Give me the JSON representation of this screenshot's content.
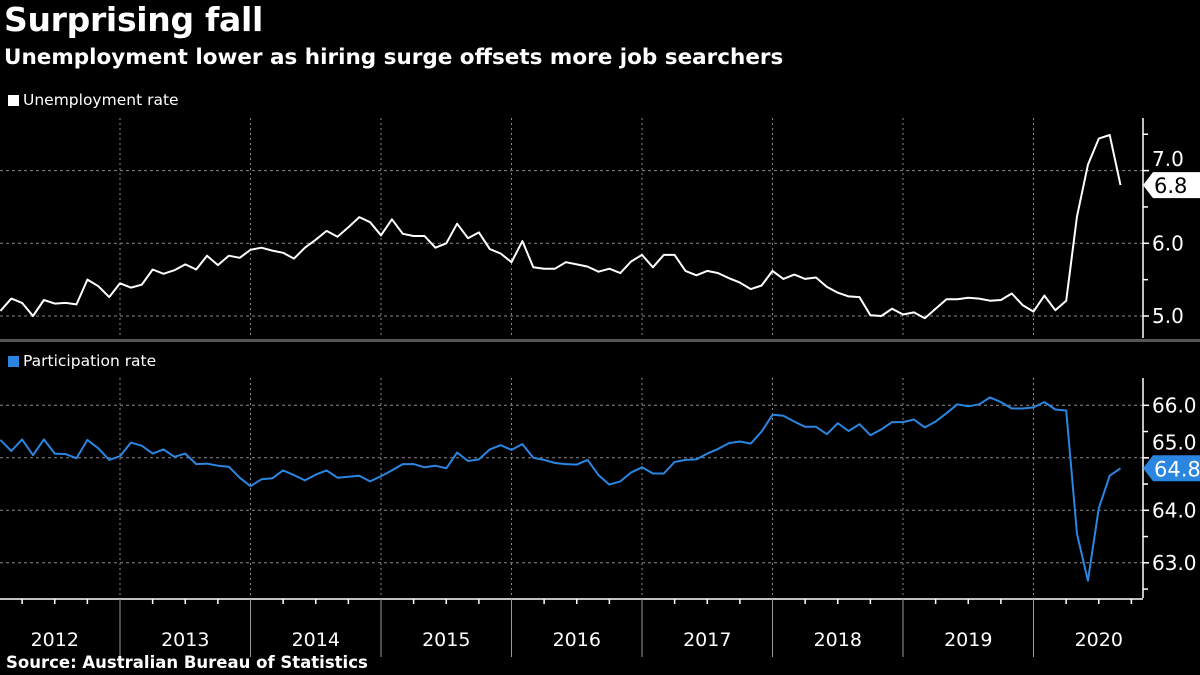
{
  "header": {
    "title": "Surprising fall",
    "subtitle": "Unemployment lower as hiring surge offsets more job searchers"
  },
  "footer": {
    "source": "Source: Australian Bureau of Statistics"
  },
  "colors": {
    "background": "#000000",
    "unemployment": "#ffffff",
    "participation": "#2a86e0",
    "separator": "#555555"
  },
  "chart_data": [
    {
      "type": "line",
      "title": "",
      "legend": {
        "entries": [
          "Unemployment rate"
        ],
        "placement": "top-left"
      },
      "xlabel": "",
      "ylabel": "",
      "x_tick_labels": [
        "2012",
        "2013",
        "2014",
        "2015",
        "2016",
        "2017",
        "2018",
        "2019",
        "2020"
      ],
      "y_tick_labels": [
        "5.0",
        "6.0",
        "7.0"
      ],
      "ylim": [
        4.7,
        7.7
      ],
      "y_axis_side": "right",
      "grid": true,
      "last_value_label": "6.8",
      "x": [
        "2012-01",
        "2012-02",
        "2012-03",
        "2012-04",
        "2012-05",
        "2012-06",
        "2012-07",
        "2012-08",
        "2012-09",
        "2012-10",
        "2012-11",
        "2012-12",
        "2013-01",
        "2013-02",
        "2013-03",
        "2013-04",
        "2013-05",
        "2013-06",
        "2013-07",
        "2013-08",
        "2013-09",
        "2013-10",
        "2013-11",
        "2013-12",
        "2014-01",
        "2014-02",
        "2014-03",
        "2014-04",
        "2014-05",
        "2014-06",
        "2014-07",
        "2014-08",
        "2014-09",
        "2014-10",
        "2014-11",
        "2014-12",
        "2015-01",
        "2015-02",
        "2015-03",
        "2015-04",
        "2015-05",
        "2015-06",
        "2015-07",
        "2015-08",
        "2015-09",
        "2015-10",
        "2015-11",
        "2015-12",
        "2016-01",
        "2016-02",
        "2016-03",
        "2016-04",
        "2016-05",
        "2016-06",
        "2016-07",
        "2016-08",
        "2016-09",
        "2016-10",
        "2016-11",
        "2016-12",
        "2017-01",
        "2017-02",
        "2017-03",
        "2017-04",
        "2017-05",
        "2017-06",
        "2017-07",
        "2017-08",
        "2017-09",
        "2017-10",
        "2017-11",
        "2017-12",
        "2018-01",
        "2018-02",
        "2018-03",
        "2018-04",
        "2018-05",
        "2018-06",
        "2018-07",
        "2018-08",
        "2018-09",
        "2018-10",
        "2018-11",
        "2018-12",
        "2019-01",
        "2019-02",
        "2019-03",
        "2019-04",
        "2019-05",
        "2019-06",
        "2019-07",
        "2019-08",
        "2019-09",
        "2019-10",
        "2019-11",
        "2019-12",
        "2020-01",
        "2020-02",
        "2020-03",
        "2020-04",
        "2020-05",
        "2020-06",
        "2020-07",
        "2020-08"
      ],
      "series": [
        {
          "name": "Unemployment rate",
          "values": [
            5.07,
            5.24,
            5.18,
            5.0,
            5.22,
            5.17,
            5.18,
            5.16,
            5.5,
            5.41,
            5.26,
            5.45,
            5.39,
            5.43,
            5.64,
            5.58,
            5.63,
            5.71,
            5.64,
            5.83,
            5.7,
            5.83,
            5.8,
            5.91,
            5.94,
            5.9,
            5.87,
            5.79,
            5.94,
            6.05,
            6.17,
            6.09,
            6.22,
            6.36,
            6.29,
            6.11,
            6.33,
            6.13,
            6.1,
            6.1,
            5.94,
            6.0,
            6.27,
            6.07,
            6.15,
            5.92,
            5.86,
            5.74,
            6.03,
            5.67,
            5.65,
            5.65,
            5.74,
            5.71,
            5.68,
            5.61,
            5.65,
            5.59,
            5.75,
            5.84,
            5.67,
            5.84,
            5.84,
            5.62,
            5.56,
            5.62,
            5.59,
            5.52,
            5.46,
            5.37,
            5.42,
            5.62,
            5.51,
            5.57,
            5.51,
            5.53,
            5.4,
            5.32,
            5.27,
            5.26,
            5.01,
            5.0,
            5.1,
            5.02,
            5.05,
            4.97,
            5.1,
            5.23,
            5.23,
            5.25,
            5.24,
            5.21,
            5.22,
            5.31,
            5.15,
            5.06,
            5.28,
            5.08,
            5.21,
            6.37,
            7.08,
            7.44,
            7.49,
            6.8
          ]
        }
      ]
    },
    {
      "type": "line",
      "title": "",
      "legend": {
        "entries": [
          "Participation rate"
        ],
        "placement": "top-left"
      },
      "xlabel": "",
      "ylabel": "",
      "x_tick_labels": [
        "2012",
        "2013",
        "2014",
        "2015",
        "2016",
        "2017",
        "2018",
        "2019",
        "2020"
      ],
      "y_tick_labels": [
        "63.0",
        "64.0",
        "65.0",
        "66.0"
      ],
      "ylim": [
        62.3,
        66.5
      ],
      "y_axis_side": "right",
      "grid": true,
      "last_value_label": "64.8",
      "x": [
        "2012-01",
        "2012-02",
        "2012-03",
        "2012-04",
        "2012-05",
        "2012-06",
        "2012-07",
        "2012-08",
        "2012-09",
        "2012-10",
        "2012-11",
        "2012-12",
        "2013-01",
        "2013-02",
        "2013-03",
        "2013-04",
        "2013-05",
        "2013-06",
        "2013-07",
        "2013-08",
        "2013-09",
        "2013-10",
        "2013-11",
        "2013-12",
        "2014-01",
        "2014-02",
        "2014-03",
        "2014-04",
        "2014-05",
        "2014-06",
        "2014-07",
        "2014-08",
        "2014-09",
        "2014-10",
        "2014-11",
        "2014-12",
        "2015-01",
        "2015-02",
        "2015-03",
        "2015-04",
        "2015-05",
        "2015-06",
        "2015-07",
        "2015-08",
        "2015-09",
        "2015-10",
        "2015-11",
        "2015-12",
        "2016-01",
        "2016-02",
        "2016-03",
        "2016-04",
        "2016-05",
        "2016-06",
        "2016-07",
        "2016-08",
        "2016-09",
        "2016-10",
        "2016-11",
        "2016-12",
        "2017-01",
        "2017-02",
        "2017-03",
        "2017-04",
        "2017-05",
        "2017-06",
        "2017-07",
        "2017-08",
        "2017-09",
        "2017-10",
        "2017-11",
        "2017-12",
        "2018-01",
        "2018-02",
        "2018-03",
        "2018-04",
        "2018-05",
        "2018-06",
        "2018-07",
        "2018-08",
        "2018-09",
        "2018-10",
        "2018-11",
        "2018-12",
        "2019-01",
        "2019-02",
        "2019-03",
        "2019-04",
        "2019-05",
        "2019-06",
        "2019-07",
        "2019-08",
        "2019-09",
        "2019-10",
        "2019-11",
        "2019-12",
        "2020-01",
        "2020-02",
        "2020-03",
        "2020-04",
        "2020-05",
        "2020-06",
        "2020-07",
        "2020-08"
      ],
      "series": [
        {
          "name": "Participation rate",
          "values": [
            65.34,
            65.13,
            65.35,
            65.05,
            65.35,
            65.08,
            65.07,
            64.99,
            65.34,
            65.18,
            64.96,
            65.03,
            65.29,
            65.23,
            65.08,
            65.16,
            65.02,
            65.08,
            64.88,
            64.89,
            64.85,
            64.83,
            64.62,
            64.46,
            64.59,
            64.61,
            64.76,
            64.67,
            64.57,
            64.68,
            64.76,
            64.62,
            64.64,
            64.66,
            64.55,
            64.65,
            64.76,
            64.88,
            64.88,
            64.82,
            64.85,
            64.8,
            65.1,
            64.94,
            64.97,
            65.16,
            65.24,
            65.15,
            65.26,
            65.0,
            64.96,
            64.9,
            64.88,
            64.87,
            64.96,
            64.67,
            64.49,
            64.55,
            64.72,
            64.82,
            64.7,
            64.7,
            64.92,
            64.96,
            64.97,
            65.08,
            65.17,
            65.28,
            65.31,
            65.27,
            65.5,
            65.82,
            65.8,
            65.69,
            65.59,
            65.59,
            65.45,
            65.66,
            65.51,
            65.64,
            65.43,
            65.54,
            65.68,
            65.68,
            65.73,
            65.58,
            65.69,
            65.85,
            66.02,
            65.98,
            66.02,
            66.15,
            66.06,
            65.94,
            65.94,
            65.96,
            66.06,
            65.92,
            65.9,
            63.55,
            62.66,
            64.04,
            64.66,
            64.8
          ]
        }
      ]
    }
  ]
}
